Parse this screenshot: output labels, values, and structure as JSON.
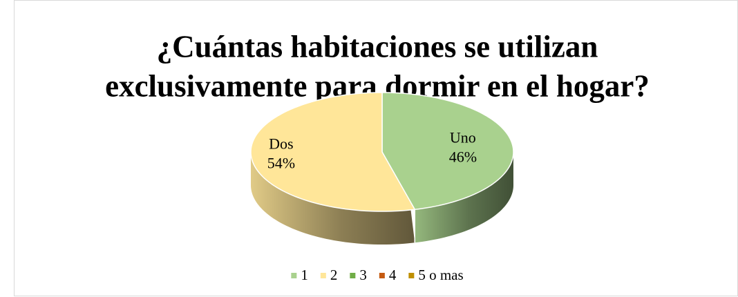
{
  "chart_data": {
    "type": "pie3d",
    "title": [
      "¿Cuántas habitaciones se utilizan",
      "exclusivamente para dormir en el hogar?"
    ],
    "categories": [
      "1",
      "2",
      "3",
      "4",
      "5 o mas"
    ],
    "values": [
      46,
      54,
      0,
      0,
      0
    ],
    "value_labels": [
      "46%",
      "54%",
      null,
      null,
      null
    ],
    "label_names": [
      "Uno",
      "Dos",
      null,
      null,
      null
    ],
    "colors": [
      "#a9d18e",
      "#ffe699",
      "#70ad47",
      "#c55a11",
      "#bf8f00"
    ],
    "legend": "bottom"
  }
}
